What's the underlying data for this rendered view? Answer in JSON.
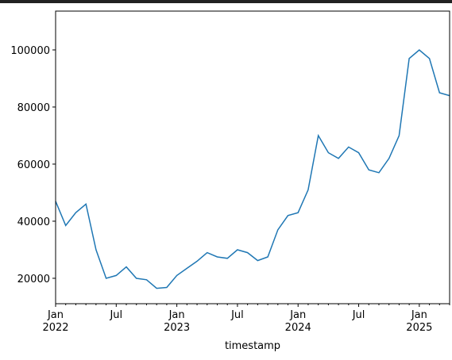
{
  "chart_data": {
    "type": "line",
    "xlabel": "timestamp",
    "x": [
      "2022-01",
      "2022-02",
      "2022-03",
      "2022-04",
      "2022-05",
      "2022-06",
      "2022-07",
      "2022-08",
      "2022-09",
      "2022-10",
      "2022-11",
      "2022-12",
      "2023-01",
      "2023-02",
      "2023-03",
      "2023-04",
      "2023-05",
      "2023-06",
      "2023-07",
      "2023-08",
      "2023-09",
      "2023-10",
      "2023-11",
      "2023-12",
      "2024-01",
      "2024-02",
      "2024-03",
      "2024-04",
      "2024-05",
      "2024-06",
      "2024-07",
      "2024-08",
      "2024-09",
      "2024-10",
      "2024-11",
      "2024-12",
      "2025-01",
      "2025-02",
      "2025-03",
      "2025-04"
    ],
    "series": [
      {
        "color": "#1f77b4",
        "values": [
          47000,
          38500,
          43000,
          46000,
          30000,
          20000,
          21000,
          24000,
          20000,
          19500,
          16500,
          16800,
          21000,
          23500,
          26000,
          29000,
          27500,
          27000,
          30000,
          29000,
          26200,
          27500,
          37000,
          42000,
          43000,
          51000,
          70000,
          64000,
          62000,
          66000,
          64000,
          58000,
          57000,
          62000,
          70000,
          97000,
          100000,
          97000,
          85000,
          84000
        ]
      }
    ],
    "xlim": [
      "2022-01",
      "2025-04"
    ],
    "ylim": [
      11100,
      113600
    ],
    "yticks": [
      20000,
      40000,
      60000,
      80000,
      100000
    ],
    "xticks": [
      {
        "value": "2022-01",
        "label": "Jan 2022"
      },
      {
        "value": "2022-07",
        "label": "Jul"
      },
      {
        "value": "2023-01",
        "label": "Jan 2023"
      },
      {
        "value": "2023-07",
        "label": "Jul"
      },
      {
        "value": "2024-01",
        "label": "Jan 2024"
      },
      {
        "value": "2024-07",
        "label": "Jul"
      },
      {
        "value": "2025-01",
        "label": "Jan 2025"
      }
    ],
    "xminorticks": [
      "2022-02",
      "2022-03",
      "2022-04",
      "2022-05",
      "2022-06",
      "2022-08",
      "2022-09",
      "2022-10",
      "2022-11",
      "2022-12",
      "2023-02",
      "2023-03",
      "2023-04",
      "2023-05",
      "2023-06",
      "2023-08",
      "2023-09",
      "2023-10",
      "2023-11",
      "2023-12",
      "2024-02",
      "2024-03",
      "2024-04",
      "2024-05",
      "2024-06",
      "2024-08",
      "2024-09",
      "2024-10",
      "2024-11",
      "2024-12",
      "2025-02",
      "2025-03",
      "2025-04"
    ],
    "grid": false
  }
}
